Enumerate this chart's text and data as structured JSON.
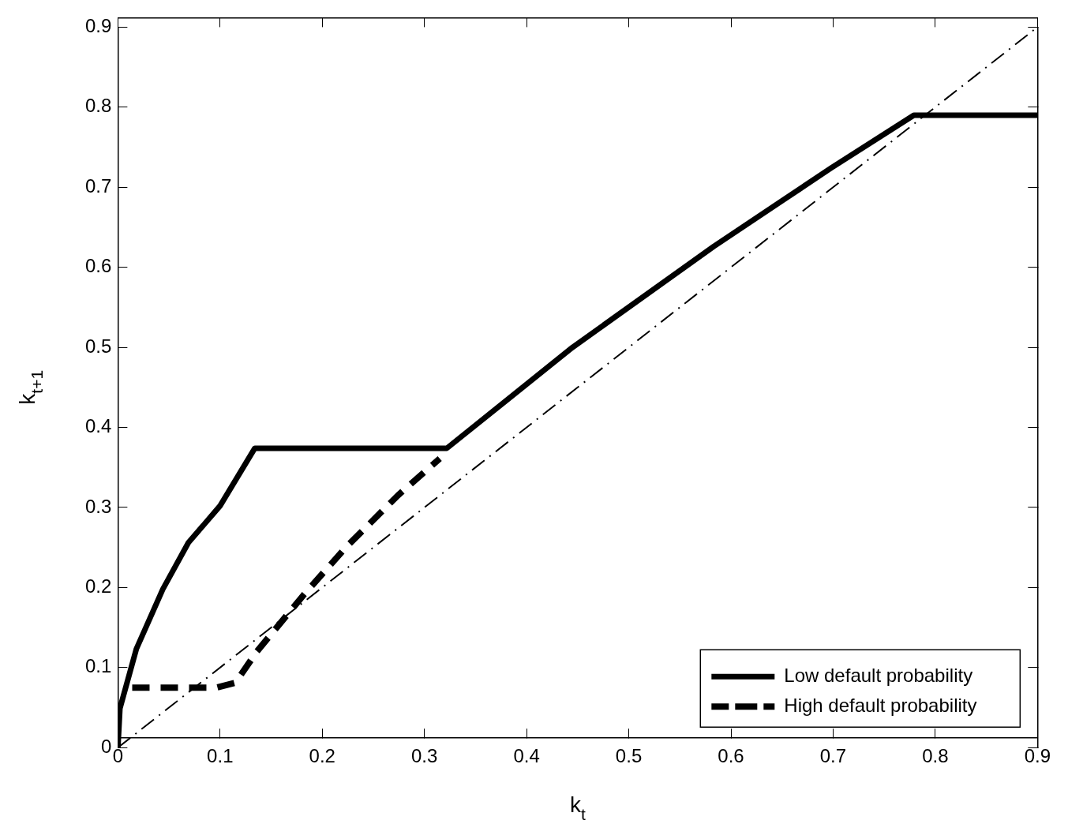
{
  "chart_data": {
    "type": "line",
    "xlabel": "k$_{t}$",
    "ylabel": "k$_{t+1}$",
    "xlim": [
      0,
      0.9
    ],
    "ylim": [
      0,
      0.9
    ],
    "xticks": [
      0,
      0.1,
      0.2,
      0.3,
      0.4,
      0.5,
      0.6,
      0.7,
      0.8,
      0.9
    ],
    "yticks": [
      0,
      0.1,
      0.2,
      0.3,
      0.4,
      0.5,
      0.6,
      0.7,
      0.8,
      0.9
    ],
    "grid": false,
    "legend": "bottom right",
    "marker": "none",
    "series": [
      {
        "name": "Low default probability",
        "color": "#000000",
        "line_style": "solid",
        "x": [
          0,
          0.002,
          0.018,
          0.044,
          0.069,
          0.1,
          0.134,
          0.322,
          0.445,
          0.583,
          0.698,
          0.779,
          0.9
        ],
        "values": [
          0,
          0.049,
          0.123,
          0.198,
          0.256,
          0.302,
          0.374,
          0.374,
          0.5,
          0.626,
          0.724,
          0.79,
          0.79
        ]
      },
      {
        "name": "High default probability",
        "color": "#000000",
        "line_style": "dashed",
        "x": [
          0.014,
          0.097,
          0.115,
          0.136,
          0.182,
          0.223,
          0.274,
          0.315
        ],
        "values": [
          0.075,
          0.075,
          0.081,
          0.12,
          0.191,
          0.25,
          0.315,
          0.361
        ]
      },
      {
        "color": "#000000",
        "line_style": "dashdot",
        "x": [
          0,
          0.9
        ],
        "values": [
          0,
          0.9
        ]
      }
    ]
  }
}
